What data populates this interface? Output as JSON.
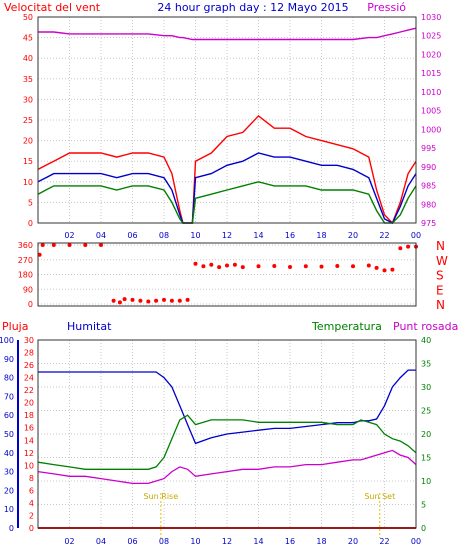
{
  "chart_data": [
    {
      "type": "line",
      "title": "24 hour graph day : 12 Mayo 2015",
      "left_label": "Velocitat del vent",
      "right_label": "Pressió",
      "x_ticks": [
        "02",
        "04",
        "06",
        "08",
        "10",
        "12",
        "14",
        "16",
        "18",
        "20",
        "22",
        "00"
      ],
      "y_left_ticks": [
        "0",
        "5",
        "10",
        "15",
        "20",
        "25",
        "30",
        "35",
        "40",
        "45",
        "50"
      ],
      "y_left_range": [
        0,
        50
      ],
      "y_right_ticks": [
        "975",
        "980",
        "985",
        "990",
        "995",
        "1000",
        "1005",
        "1010",
        "1015",
        "1020",
        "1025",
        "1030"
      ],
      "y_right_range": [
        975,
        1030
      ],
      "hours": [
        0,
        0.5,
        1,
        2,
        3,
        4,
        5,
        6,
        7,
        8,
        8.5,
        9,
        9.2,
        9.8,
        10,
        11,
        12,
        13,
        14,
        15,
        16,
        17,
        18,
        19,
        20,
        21,
        21.5,
        22,
        22.5,
        23,
        23.5,
        24
      ],
      "series": [
        {
          "color": "#ff0000",
          "values": [
            13,
            14,
            15,
            17,
            17,
            17,
            16,
            17,
            17,
            16,
            12,
            3,
            0,
            0,
            15,
            17,
            21,
            22,
            26,
            23,
            23,
            21,
            20,
            19,
            18,
            16,
            8,
            2,
            0,
            5,
            12,
            15
          ]
        },
        {
          "color": "#0000cc",
          "values": [
            10,
            11,
            12,
            12,
            12,
            12,
            11,
            12,
            12,
            11,
            8,
            2,
            0,
            0,
            11,
            12,
            14,
            15,
            17,
            16,
            16,
            15,
            14,
            14,
            13,
            11,
            6,
            1,
            0,
            4,
            9,
            12
          ]
        },
        {
          "color": "#008000",
          "values": [
            7,
            8,
            9,
            9,
            9,
            9,
            8,
            9,
            9,
            8,
            5,
            1,
            0,
            0,
            6,
            7,
            8,
            9,
            10,
            9,
            9,
            9,
            8,
            8,
            8,
            7,
            3,
            0,
            0,
            2,
            6,
            9
          ]
        },
        {
          "color": "#cc00cc",
          "axis": "right",
          "values": [
            1026,
            1026,
            1026,
            1025.5,
            1025.5,
            1025.5,
            1025.5,
            1025.5,
            1025.5,
            1025,
            1025,
            1024.5,
            1024.5,
            1024,
            1024,
            1024,
            1024,
            1024,
            1024,
            1024,
            1024,
            1024,
            1024,
            1024,
            1024,
            1024.5,
            1024.5,
            1025,
            1025.5,
            1026,
            1026.5,
            1027
          ]
        }
      ]
    },
    {
      "type": "scatter",
      "y_ticks": [
        "360",
        "270",
        "180",
        "90",
        "0"
      ],
      "y_range": [
        0,
        360
      ],
      "compass": [
        "N",
        "W",
        "S",
        "E",
        "N"
      ],
      "color": "#ff0000",
      "points": [
        [
          0.1,
          300
        ],
        [
          0.3,
          360
        ],
        [
          1,
          360
        ],
        [
          2,
          360
        ],
        [
          3,
          360
        ],
        [
          4,
          360
        ],
        [
          4.8,
          20
        ],
        [
          5.2,
          10
        ],
        [
          5.5,
          30
        ],
        [
          6,
          25
        ],
        [
          6.5,
          20
        ],
        [
          7,
          15
        ],
        [
          7.5,
          20
        ],
        [
          8,
          25
        ],
        [
          8.5,
          20
        ],
        [
          9,
          20
        ],
        [
          9.5,
          25
        ],
        [
          10,
          245
        ],
        [
          10.5,
          230
        ],
        [
          11,
          240
        ],
        [
          11.5,
          225
        ],
        [
          12,
          235
        ],
        [
          12.5,
          240
        ],
        [
          13,
          225
        ],
        [
          14,
          230
        ],
        [
          15,
          232
        ],
        [
          16,
          226
        ],
        [
          17,
          230
        ],
        [
          18,
          228
        ],
        [
          19,
          232
        ],
        [
          20,
          230
        ],
        [
          21,
          235
        ],
        [
          21.5,
          220
        ],
        [
          22,
          205
        ],
        [
          22.5,
          210
        ],
        [
          23,
          340
        ],
        [
          23.5,
          350
        ],
        [
          24,
          350
        ]
      ]
    },
    {
      "type": "line",
      "left_labels": [
        "Pluja",
        "Humitat"
      ],
      "right_labels": [
        "Temperatura",
        "Punt rosada"
      ],
      "x_ticks": [
        "02",
        "04",
        "06",
        "08",
        "10",
        "12",
        "14",
        "16",
        "18",
        "20",
        "22",
        "00"
      ],
      "rain_ticks": [
        "0",
        "2",
        "4",
        "6",
        "8",
        "10",
        "12",
        "14",
        "16",
        "18",
        "20",
        "22",
        "24",
        "26",
        "28",
        "30"
      ],
      "rain_range": [
        0,
        30
      ],
      "humidity_ticks": [
        "0",
        "10",
        "20",
        "30",
        "40",
        "50",
        "60",
        "70",
        "80",
        "90",
        "100"
      ],
      "humidity_range": [
        0,
        100
      ],
      "temp_ticks": [
        "0",
        "5",
        "10",
        "15",
        "20",
        "25",
        "30",
        "35",
        "40"
      ],
      "temp_range": [
        0,
        40
      ],
      "sunrise_label": "Sun Rise",
      "sunset_label": "Sun Set",
      "sunrise_hour": 7.8,
      "sunset_hour": 21.7,
      "hours": [
        0,
        1,
        2,
        3,
        4,
        5,
        6,
        7,
        7.5,
        8,
        8.5,
        9,
        9.5,
        10,
        11,
        12,
        13,
        14,
        15,
        16,
        17,
        18,
        19,
        20,
        20.5,
        21,
        21.5,
        22,
        22.5,
        23,
        23.5,
        24
      ],
      "series": [
        {
          "color": "#0000cc",
          "axis": "humidity",
          "values": [
            83,
            83,
            83,
            83,
            83,
            83,
            83,
            83,
            83,
            80,
            75,
            65,
            55,
            45,
            48,
            50,
            51,
            52,
            53,
            53,
            54,
            55,
            56,
            56,
            57,
            57,
            58,
            65,
            75,
            80,
            84,
            84
          ]
        },
        {
          "color": "#008000",
          "axis": "temp",
          "values": [
            14,
            13.5,
            13,
            12.5,
            12.5,
            12.5,
            12.5,
            12.5,
            13,
            15,
            19,
            23,
            24,
            22,
            23,
            23,
            23,
            22.5,
            22.5,
            22.5,
            22.5,
            22.5,
            22,
            22,
            23,
            22.5,
            22,
            20,
            19,
            18.5,
            17.5,
            16
          ]
        },
        {
          "color": "#cc00cc",
          "axis": "temp",
          "values": [
            12,
            11.5,
            11,
            11,
            10.5,
            10,
            9.5,
            9.5,
            10,
            10.5,
            12,
            13,
            12.5,
            11,
            11.5,
            12,
            12.5,
            12.5,
            13,
            13,
            13.5,
            13.5,
            14,
            14.5,
            14.5,
            15,
            15.5,
            16,
            16.5,
            15.5,
            15,
            13.5
          ]
        },
        {
          "color": "#ff0000",
          "axis": "rain",
          "values": [
            0,
            0,
            0,
            0,
            0,
            0,
            0,
            0,
            0,
            0,
            0,
            0,
            0,
            0,
            0,
            0,
            0,
            0,
            0,
            0,
            0,
            0,
            0,
            0,
            0,
            0,
            0,
            0,
            0,
            0,
            0,
            0
          ]
        }
      ]
    }
  ]
}
